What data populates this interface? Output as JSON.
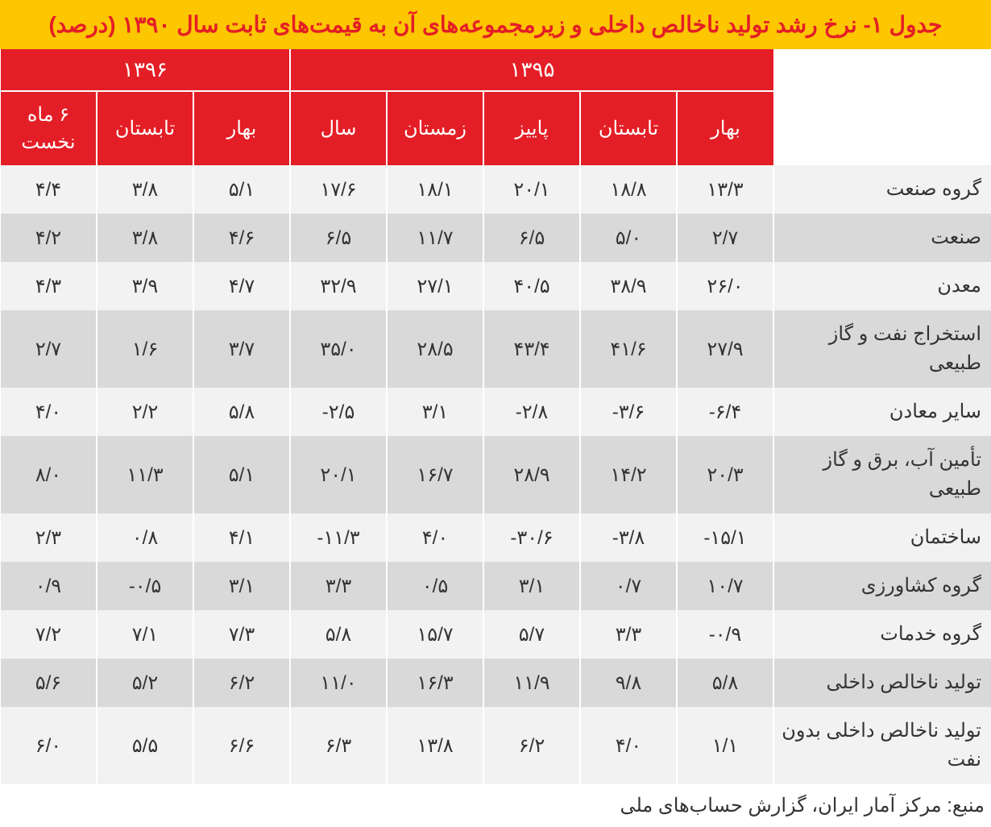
{
  "title": "جدول ۱- نرخ رشد تولید ناخالص داخلی و زیرمجموعه‌های آن به قیمت‌های ثابت سال ۱۳۹۰ (درصد)",
  "colors": {
    "title_bg": "#fcc600",
    "title_text": "#e41e26",
    "header_bg": "#e41e26",
    "header_text": "#ffffff",
    "row_odd_bg": "#f2f2f2",
    "row_even_bg": "#d9d9d9",
    "cell_text": "#333333",
    "border": "#ffffff"
  },
  "typography": {
    "title_fontsize": 28,
    "header_fontsize": 26,
    "subheader_fontsize": 24,
    "cell_fontsize": 24,
    "source_fontsize": 24
  },
  "year_headers": {
    "y1395": "۱۳۹۵",
    "y1396": "۱۳۹۶"
  },
  "season_headers": {
    "s1": "بهار",
    "s2": "تابستان",
    "s3": "پاییز",
    "s4": "زمستان",
    "s5": "سال",
    "s6": "بهار",
    "s7": "تابستان",
    "s8": "۶ ماه نخست"
  },
  "rows": [
    {
      "label": "گروه صنعت",
      "v": [
        "۱۳/۳",
        "۱۸/۸",
        "۲۰/۱",
        "۱۸/۱",
        "۱۷/۶",
        "۵/۱",
        "۳/۸",
        "۴/۴"
      ]
    },
    {
      "label": "صنعت",
      "v": [
        "۲/۷",
        "۵/۰",
        "۶/۵",
        "۱۱/۷",
        "۶/۵",
        "۴/۶",
        "۳/۸",
        "۴/۲"
      ]
    },
    {
      "label": "معدن",
      "v": [
        "۲۶/۰",
        "۳۸/۹",
        "۴۰/۵",
        "۲۷/۱",
        "۳۲/۹",
        "۴/۷",
        "۳/۹",
        "۴/۳"
      ]
    },
    {
      "label": "استخراج نفت و گاز طبیعی",
      "v": [
        "۲۷/۹",
        "۴۱/۶",
        "۴۳/۴",
        "۲۸/۵",
        "۳۵/۰",
        "۳/۷",
        "۱/۶",
        "۲/۷"
      ]
    },
    {
      "label": "سایر معادن",
      "v": [
        "-۶/۴",
        "-۳/۶",
        "-۲/۸",
        "۳/۱",
        "-۲/۵",
        "۵/۸",
        "۲/۲",
        "۴/۰"
      ]
    },
    {
      "label": "تأمین آب، برق و گاز طبیعی",
      "v": [
        "۲۰/۳",
        "۱۴/۲",
        "۲۸/۹",
        "۱۶/۷",
        "۲۰/۱",
        "۵/۱",
        "۱۱/۳",
        "۸/۰"
      ]
    },
    {
      "label": "ساختمان",
      "v": [
        "-۱۵/۱",
        "-۳/۸",
        "-۳۰/۶",
        "۴/۰",
        "-۱۱/۳",
        "۴/۱",
        "۰/۸",
        "۲/۳"
      ]
    },
    {
      "label": "گروه کشاورزی",
      "v": [
        "۱۰/۷",
        "۰/۷",
        "۳/۱",
        "۰/۵",
        "۳/۳",
        "۳/۱",
        "-۰/۵",
        "۰/۹"
      ]
    },
    {
      "label": "گروه خدمات",
      "v": [
        "-۰/۹",
        "۳/۳",
        "۵/۷",
        "۱۵/۷",
        "۵/۸",
        "۷/۳",
        "۷/۱",
        "۷/۲"
      ]
    },
    {
      "label": "تولید ناخالص داخلی",
      "v": [
        "۵/۸",
        "۹/۸",
        "۱۱/۹",
        "۱۶/۳",
        "۱۱/۰",
        "۶/۲",
        "۵/۲",
        "۵/۶"
      ]
    },
    {
      "label": "تولید ناخالص داخلی بدون نفت",
      "v": [
        "۱/۱",
        "۴/۰",
        "۶/۲",
        "۱۳/۸",
        "۶/۳",
        "۶/۶",
        "۵/۵",
        "۶/۰"
      ]
    }
  ],
  "source": "منبع: مرکز آمار ایران، گزارش حساب‌های ملی"
}
